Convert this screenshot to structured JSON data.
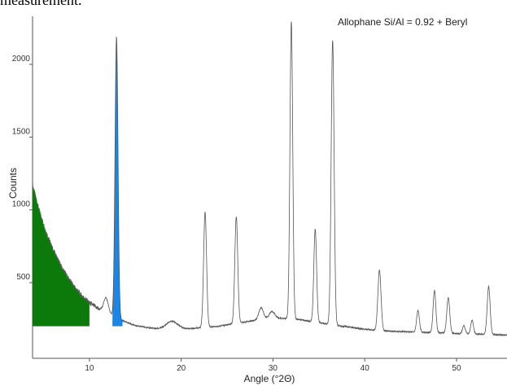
{
  "caption_fragment": "measurement.",
  "chart_data": {
    "type": "line",
    "annotation": "Allophane Si/Al = 0.92 + Beryl",
    "xlabel": "Angle (°2Θ)",
    "ylabel": "Counts",
    "xlim": [
      3.8,
      55.5
    ],
    "ylim": [
      -20,
      2330
    ],
    "x_ticks": [
      10,
      20,
      30,
      40,
      50
    ],
    "y_ticks": [
      500,
      1000,
      1500,
      2000
    ],
    "grid": false,
    "line_color": "#555555",
    "fill_green": {
      "color": "#0b7a0b",
      "x_range": [
        3.8,
        10.0
      ],
      "baseline": 200
    },
    "fill_blue": {
      "color": "#1c86e6",
      "x_range": [
        12.5,
        13.6
      ],
      "baseline": 200
    },
    "background": [
      [
        3.8,
        1170
      ],
      [
        4.5,
        1000
      ],
      [
        5.2,
        860
      ],
      [
        6.0,
        730
      ],
      [
        7.0,
        600
      ],
      [
        8.0,
        500
      ],
      [
        9.0,
        420
      ],
      [
        10.0,
        360
      ],
      [
        11.0,
        320
      ],
      [
        12.0,
        290
      ],
      [
        13.5,
        240
      ],
      [
        15.0,
        205
      ],
      [
        17.0,
        185
      ],
      [
        19.0,
        180
      ],
      [
        21.0,
        185
      ],
      [
        24.0,
        200
      ],
      [
        27.0,
        230
      ],
      [
        29.0,
        250
      ],
      [
        31.0,
        255
      ],
      [
        33.0,
        245
      ],
      [
        35.0,
        225
      ],
      [
        37.0,
        205
      ],
      [
        40.0,
        180
      ],
      [
        43.0,
        165
      ],
      [
        46.0,
        160
      ],
      [
        50.0,
        150
      ],
      [
        55.5,
        140
      ]
    ],
    "peaks": [
      {
        "x": 11.8,
        "height": 100,
        "width": 0.25
      },
      {
        "x": 12.95,
        "height": 1930,
        "width": 0.16
      },
      {
        "x": 19.0,
        "height": 55,
        "width": 0.6
      },
      {
        "x": 22.6,
        "height": 790,
        "width": 0.16
      },
      {
        "x": 26.0,
        "height": 730,
        "width": 0.16
      },
      {
        "x": 28.7,
        "height": 80,
        "width": 0.25
      },
      {
        "x": 29.9,
        "height": 50,
        "width": 0.3
      },
      {
        "x": 32.0,
        "height": 2045,
        "width": 0.15
      },
      {
        "x": 34.6,
        "height": 640,
        "width": 0.15
      },
      {
        "x": 36.5,
        "height": 1955,
        "width": 0.16
      },
      {
        "x": 41.6,
        "height": 415,
        "width": 0.17
      },
      {
        "x": 45.8,
        "height": 150,
        "width": 0.15
      },
      {
        "x": 47.6,
        "height": 290,
        "width": 0.15
      },
      {
        "x": 49.1,
        "height": 245,
        "width": 0.16
      },
      {
        "x": 50.8,
        "height": 55,
        "width": 0.15
      },
      {
        "x": 51.7,
        "height": 95,
        "width": 0.15
      },
      {
        "x": 53.5,
        "height": 330,
        "width": 0.16
      }
    ]
  }
}
